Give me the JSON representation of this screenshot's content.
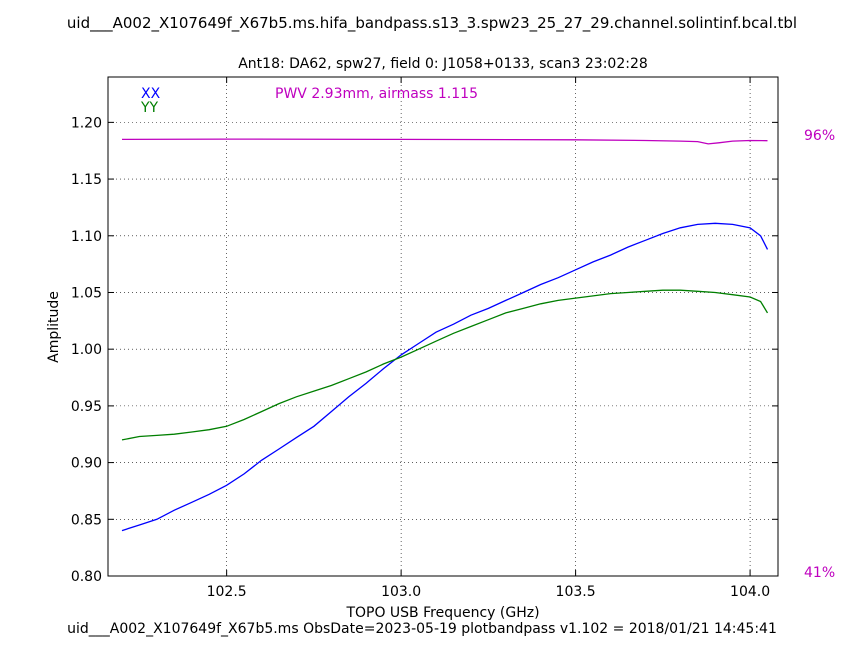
{
  "chart_data": {
    "type": "line",
    "title": "uid___A002_X107649f_X67b5.ms.hifa_bandpass.s13_3.spw23_25_27_29.channel.solintinf.bcal.tbl",
    "subtitle": "Ant18: DA62,  spw27,  field 0: J1058+0133,  scan3  23:02:28",
    "xlabel": "TOPO USB Frequency (GHz)",
    "ylabel": "Amplitude",
    "xlim": [
      102.16,
      104.08
    ],
    "ylim": [
      0.8,
      1.24
    ],
    "xticks": [
      102.5,
      103.0,
      103.5,
      104.0
    ],
    "xtick_labels": [
      "102.5",
      "103.0",
      "103.5",
      "104.0"
    ],
    "yticks": [
      0.8,
      0.85,
      0.9,
      0.95,
      1.0,
      1.05,
      1.1,
      1.15,
      1.2
    ],
    "ytick_labels": [
      "0.80",
      "0.85",
      "0.90",
      "0.95",
      "1.00",
      "1.05",
      "1.10",
      "1.15",
      "1.20"
    ],
    "grid": true,
    "legend_position": "top-left",
    "annotation": "PWV 2.93mm, airmass 1.115",
    "annotation_color": "#bf00bf",
    "right_axis_labels": {
      "top": "96%",
      "bottom": "41%"
    },
    "series": [
      {
        "name": "XX",
        "color": "#0000ff",
        "x": [
          102.2,
          102.25,
          102.3,
          102.35,
          102.4,
          102.45,
          102.5,
          102.55,
          102.6,
          102.65,
          102.7,
          102.75,
          102.8,
          102.85,
          102.9,
          102.95,
          103.0,
          103.05,
          103.1,
          103.15,
          103.2,
          103.25,
          103.3,
          103.35,
          103.4,
          103.45,
          103.5,
          103.55,
          103.6,
          103.65,
          103.7,
          103.75,
          103.8,
          103.85,
          103.9,
          103.95,
          104.0,
          104.03,
          104.05
        ],
        "y": [
          0.84,
          0.845,
          0.85,
          0.858,
          0.865,
          0.872,
          0.88,
          0.89,
          0.902,
          0.912,
          0.922,
          0.932,
          0.945,
          0.958,
          0.97,
          0.983,
          0.995,
          1.005,
          1.015,
          1.022,
          1.03,
          1.036,
          1.043,
          1.05,
          1.057,
          1.063,
          1.07,
          1.077,
          1.083,
          1.09,
          1.096,
          1.102,
          1.107,
          1.11,
          1.111,
          1.11,
          1.107,
          1.1,
          1.088
        ]
      },
      {
        "name": "YY",
        "color": "#007f00",
        "x": [
          102.2,
          102.25,
          102.3,
          102.35,
          102.4,
          102.45,
          102.5,
          102.55,
          102.6,
          102.65,
          102.7,
          102.75,
          102.8,
          102.85,
          102.9,
          102.95,
          103.0,
          103.05,
          103.1,
          103.15,
          103.2,
          103.25,
          103.3,
          103.35,
          103.4,
          103.45,
          103.5,
          103.55,
          103.6,
          103.65,
          103.7,
          103.75,
          103.8,
          103.85,
          103.9,
          103.95,
          104.0,
          104.03,
          104.05
        ],
        "y": [
          0.92,
          0.923,
          0.924,
          0.925,
          0.927,
          0.929,
          0.932,
          0.938,
          0.945,
          0.952,
          0.958,
          0.963,
          0.968,
          0.974,
          0.98,
          0.987,
          0.993,
          1.0,
          1.007,
          1.014,
          1.02,
          1.026,
          1.032,
          1.036,
          1.04,
          1.043,
          1.045,
          1.047,
          1.049,
          1.05,
          1.051,
          1.052,
          1.052,
          1.051,
          1.05,
          1.048,
          1.046,
          1.042,
          1.032
        ]
      },
      {
        "name": "",
        "color": "#bf00bf",
        "x": [
          102.2,
          102.5,
          103.0,
          103.5,
          103.7,
          103.8,
          103.85,
          103.88,
          103.91,
          103.95,
          104.0,
          104.05
        ],
        "y": [
          1.185,
          1.1852,
          1.185,
          1.1846,
          1.184,
          1.1835,
          1.183,
          1.181,
          1.182,
          1.1835,
          1.184,
          1.1838
        ]
      }
    ]
  },
  "footer": "uid___A002_X107649f_X67b5.ms  ObsDate=2023-05-19   plotbandpass v1.102 = 2018/01/21 14:45:41"
}
